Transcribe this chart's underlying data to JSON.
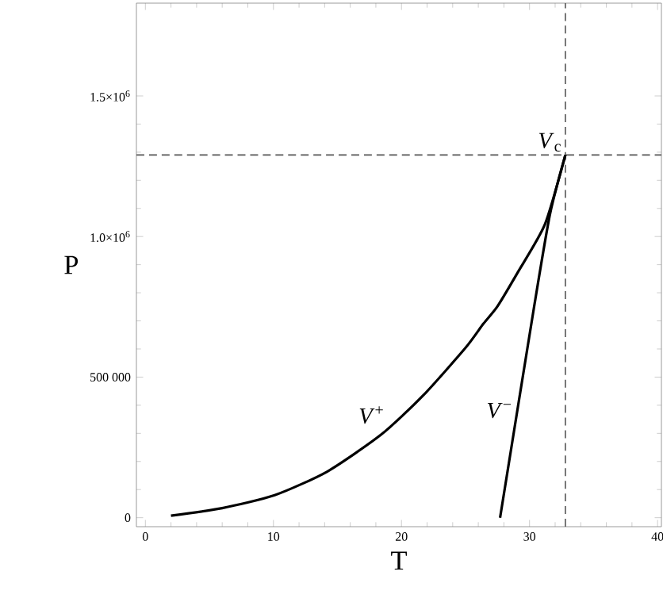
{
  "chart_data": {
    "type": "line",
    "xlabel": "T",
    "ylabel": "P",
    "xlim": [
      -0.7,
      40.3
    ],
    "ylim": [
      -32000,
      1830000
    ],
    "xticks": [
      0,
      10,
      20,
      30,
      40
    ],
    "yticks": [
      0,
      {
        "value": 500000,
        "label": "500 000"
      },
      {
        "value": 1000000,
        "label": "1.0×10$^{6}$"
      },
      {
        "value": 1500000,
        "label": "1.5×10$^{6}$"
      }
    ],
    "series": [
      {
        "color": "#000000",
        "x": [
          2.0,
          6.0,
          10.1,
          14.2,
          18.4,
          21.7,
          25.0,
          26.4,
          27.5,
          29.1,
          31.2,
          32.8
        ],
        "values": [
          7000,
          34000,
          80000,
          164000,
          295000,
          435000,
          604000,
          690000,
          752000,
          874000,
          1043000,
          1290000
        ]
      },
      {
        "color": "#000000",
        "x": [
          27.7,
          30.4,
          31.6,
          32.8
        ],
        "values": [
          0,
          762000,
          1080000,
          1290000
        ]
      }
    ],
    "ref_lines": [
      {
        "axis": "x",
        "value": 32.8,
        "color": "#555555",
        "line_style": "dashed"
      },
      {
        "axis": "y",
        "value": 1290000,
        "color": "#555555",
        "line_style": "dashed"
      }
    ],
    "annotations": [
      "*V*$^{+}$",
      "*V*$^{−}$",
      "*V*$_{c}$"
    ],
    "marker": "none",
    "line_style": "solid"
  }
}
